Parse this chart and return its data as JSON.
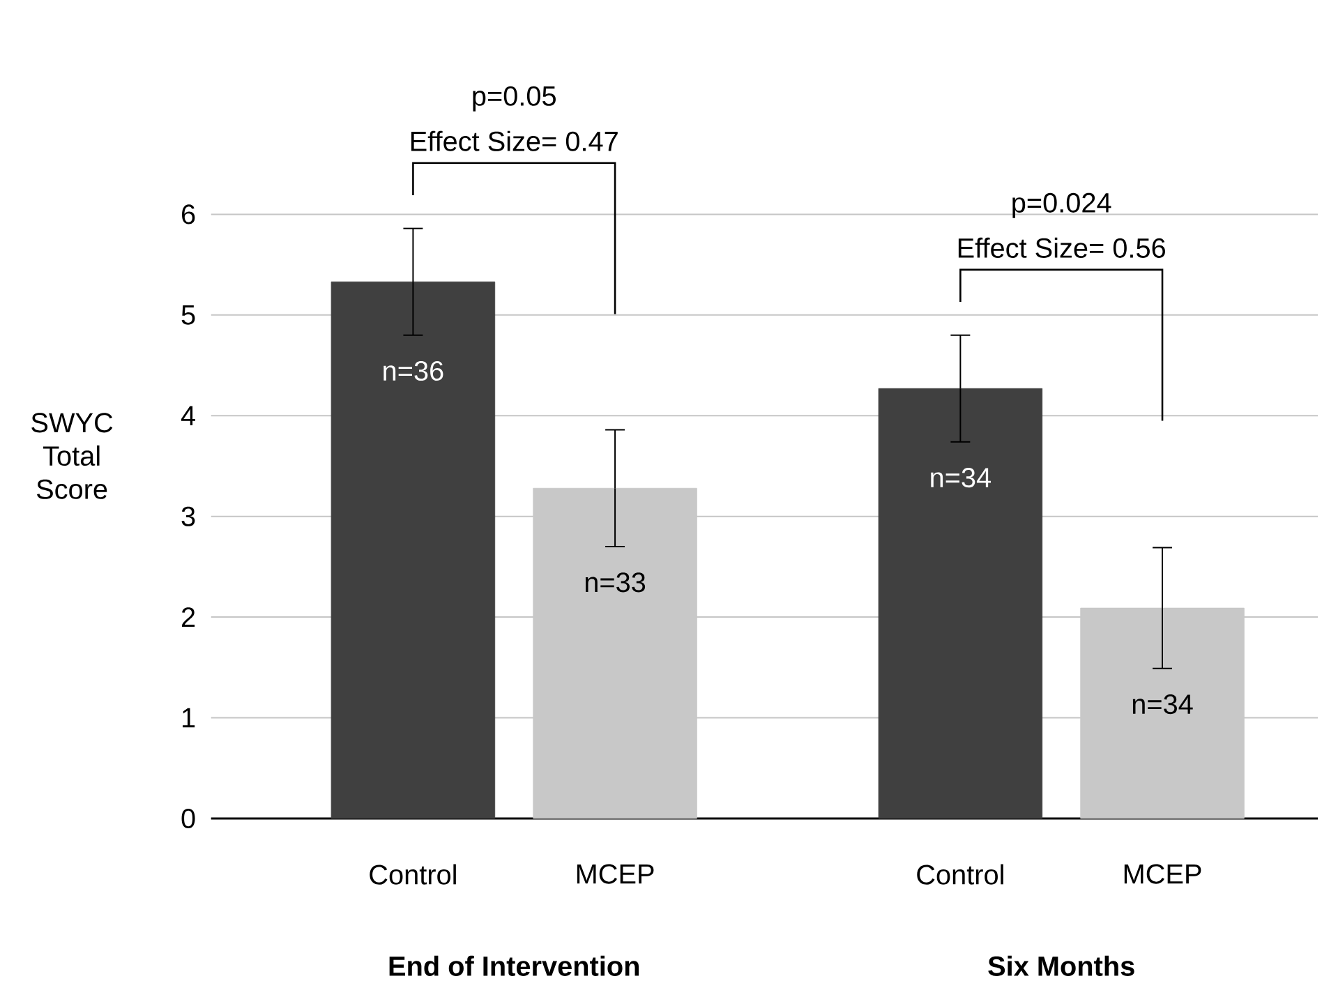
{
  "chart_data": {
    "type": "bar",
    "ylabel": "SWYC Total Score",
    "categories": [
      "Control",
      "MCEP",
      "Control",
      "MCEP"
    ],
    "values": [
      5.33,
      3.28,
      4.27,
      2.09
    ],
    "errors": [
      0.53,
      0.58,
      0.53,
      0.6
    ],
    "colors": [
      "#404040",
      "#c8c8c8",
      "#404040",
      "#c8c8c8"
    ],
    "ylim": [
      0,
      6
    ],
    "yticks": [
      0,
      1,
      2,
      3,
      4,
      5,
      6
    ],
    "grid": "y",
    "annotations": [
      "p=0.05",
      "Effect Size= 0.47",
      "p=0.024",
      "Effect Size= 0.56",
      "n=36",
      "n=33",
      "n=34",
      "n=34",
      "End of Intervention",
      "Six Months"
    ]
  }
}
